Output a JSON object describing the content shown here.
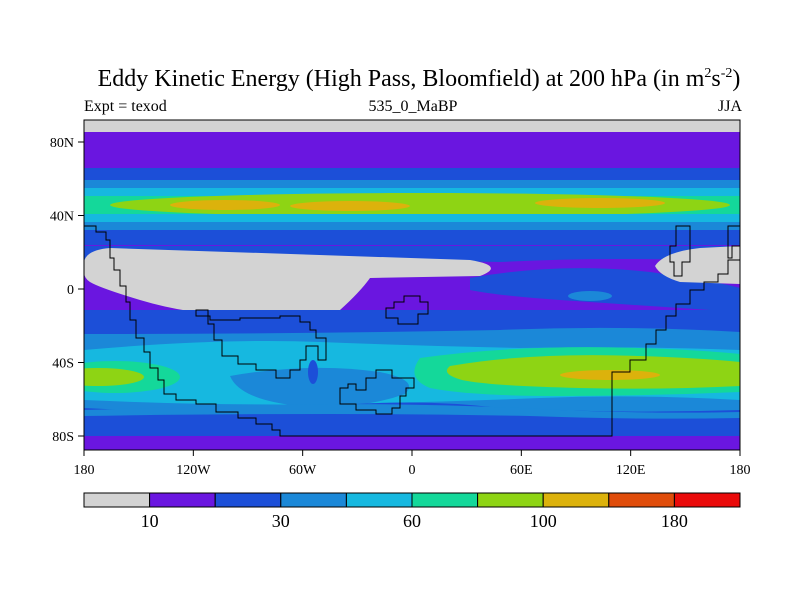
{
  "title": {
    "main": "Eddy Kinetic Energy (High Pass, Bloomfield) at 200 hPa (in m",
    "sup1": "2",
    "mid": "s",
    "sup2": "-2",
    "end": ")"
  },
  "subtitle": {
    "left": "Expt = texod",
    "center": "535_0_MaBP",
    "right": "JJA"
  },
  "axes": {
    "y_ticks": [
      "80N",
      "40N",
      "0",
      "40S",
      "80S"
    ],
    "x_ticks": [
      "180",
      "120W",
      "60W",
      "0",
      "60E",
      "120E",
      "180"
    ]
  },
  "colorbar": {
    "colors": [
      "#d3d3d3",
      "#6a16e0",
      "#1c4fd8",
      "#1b88d8",
      "#16b8e0",
      "#14d89a",
      "#8ed414",
      "#dcb20c",
      "#e04c0a",
      "#ea0a0a"
    ],
    "labels": [
      "10",
      "30",
      "60",
      "100",
      "180"
    ]
  },
  "map": {
    "lon_range": [
      -180,
      180
    ],
    "lat_range": [
      -90,
      90
    ],
    "projection": "cylindrical-equidistant"
  }
}
